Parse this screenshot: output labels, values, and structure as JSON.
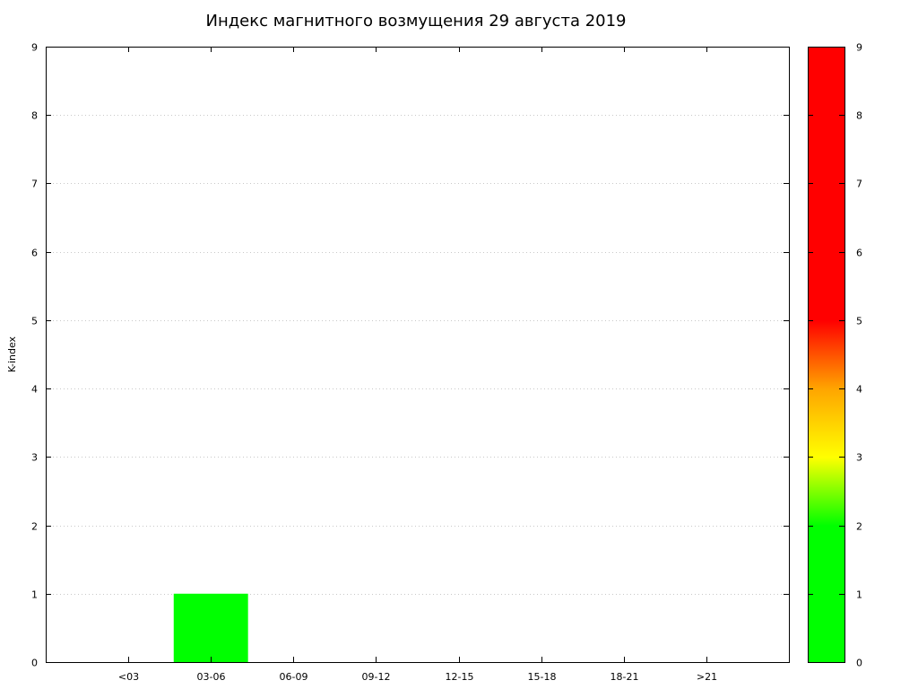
{
  "chart_data": {
    "type": "bar",
    "title": "Индекс магнитного возмущения 29 августа 2019",
    "ylabel": "K-index",
    "xlabel": "",
    "categories": [
      "<03",
      "03-06",
      "06-09",
      "09-12",
      "12-15",
      "15-18",
      "18-21",
      ">21"
    ],
    "values": [
      0,
      1,
      0,
      0,
      0,
      0,
      0,
      0
    ],
    "ylim": [
      0,
      9
    ],
    "yticks": [
      "0",
      "1",
      "2",
      "3",
      "4",
      "5",
      "6",
      "7",
      "8",
      "9"
    ],
    "grid": true,
    "bar_color": "#00ff00",
    "colorbar": {
      "range": [
        0,
        9
      ],
      "ticks": [
        "0",
        "1",
        "2",
        "3",
        "4",
        "5",
        "6",
        "7",
        "8",
        "9"
      ],
      "colors": [
        {
          "value": 0,
          "color": "#00ff00"
        },
        {
          "value": 2,
          "color": "#00ff00"
        },
        {
          "value": 3,
          "color": "#ffff00"
        },
        {
          "value": 4,
          "color": "#ffa500"
        },
        {
          "value": 5,
          "color": "#ff0000"
        },
        {
          "value": 9,
          "color": "#ff0000"
        }
      ]
    }
  }
}
